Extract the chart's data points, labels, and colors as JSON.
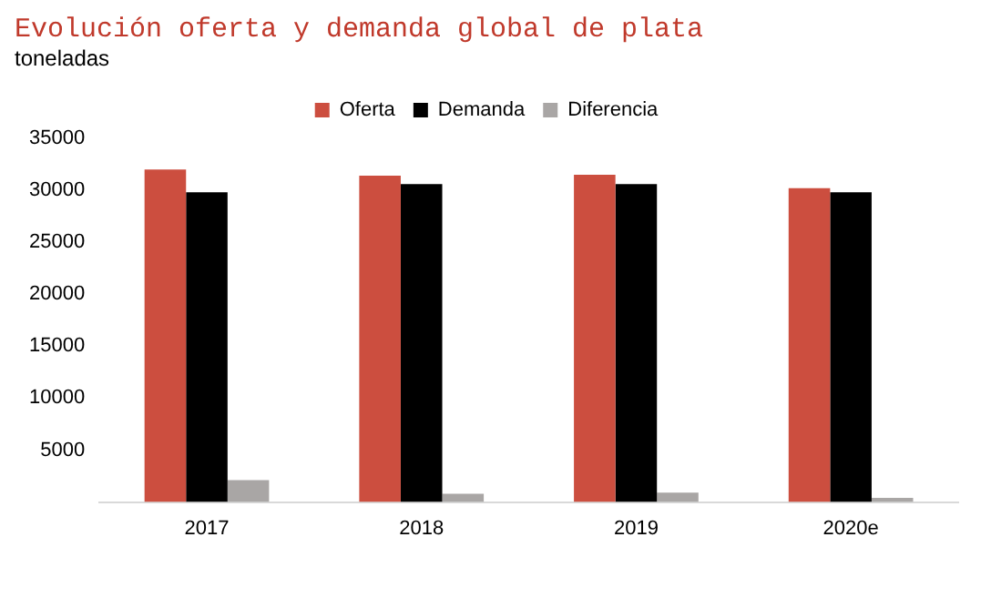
{
  "chart_data": {
    "type": "bar",
    "title": "Evolución oferta y demanda global de plata",
    "subtitle": "toneladas",
    "categories": [
      "2017",
      "2018",
      "2019",
      "2020e"
    ],
    "series": [
      {
        "name": "Oferta",
        "color": "#cc4e3f",
        "values": [
          32000,
          31400,
          31500,
          30200
        ]
      },
      {
        "name": "Demanda",
        "color": "#000000",
        "values": [
          29800,
          30600,
          30600,
          29800
        ]
      },
      {
        "name": "Diferencia",
        "color": "#a9a6a5",
        "values": [
          2100,
          800,
          900,
          400
        ]
      }
    ],
    "ylim": [
      0,
      35000
    ],
    "yticks": [
      5000,
      10000,
      15000,
      20000,
      25000,
      30000,
      35000
    ],
    "grid": false,
    "legend": "top"
  }
}
